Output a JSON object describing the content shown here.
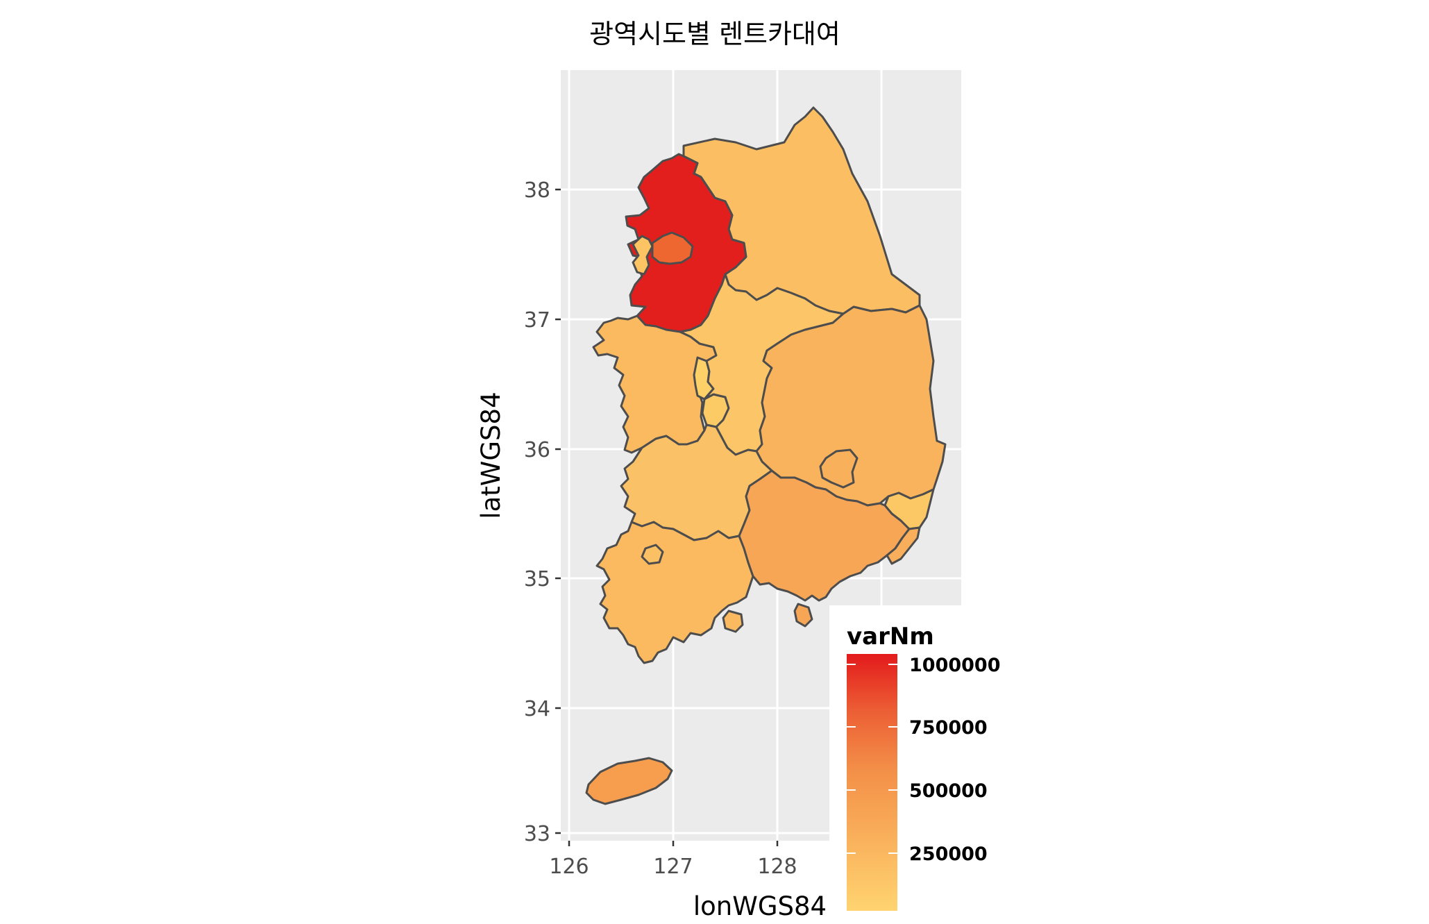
{
  "title": "광역시도별 렌트카대여",
  "x_axis": {
    "label": "lonWGS84",
    "ticks": [
      "126",
      "127",
      "128"
    ]
  },
  "y_axis": {
    "label": "latWGS84",
    "ticks": [
      "33",
      "34",
      "35",
      "36",
      "37",
      "38"
    ]
  },
  "legend": {
    "title": "varNm",
    "labels": [
      "1000000",
      "750000",
      "500000",
      "250000"
    ],
    "color_low": "#FFD470",
    "color_mid": "#F7A24E",
    "color_high": "#E31A1C"
  },
  "colors": {
    "panel": "#EBEBEB",
    "grid": "#FFFFFF",
    "border": "#4D4D4D"
  }
}
